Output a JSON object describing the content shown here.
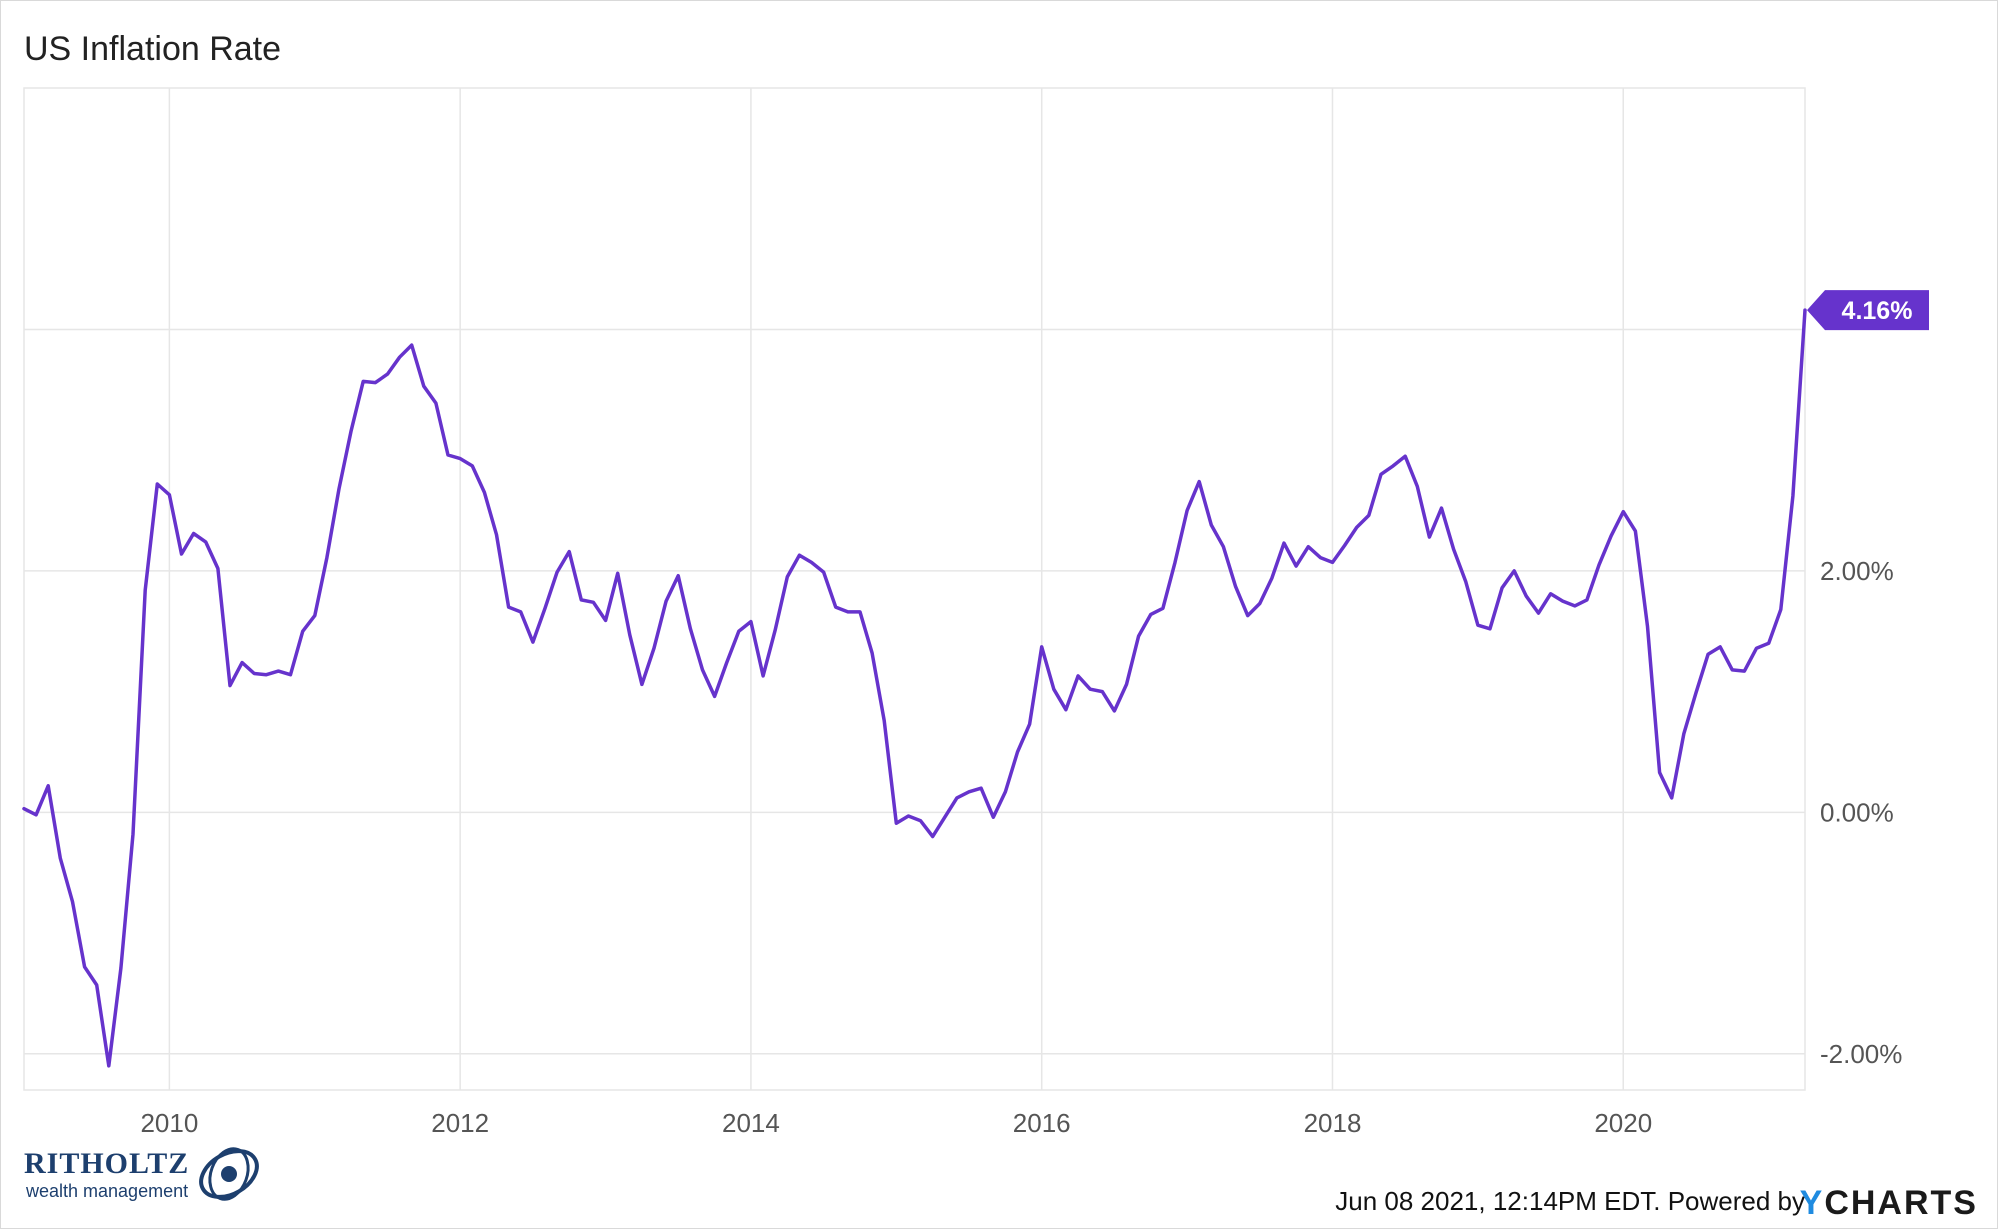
{
  "title": "US Inflation Rate",
  "footer": {
    "timestamp": "Jun 08 2021, 12:14PM EDT. Powered by",
    "brand_y": "Y",
    "brand_rest": "CHARTS"
  },
  "logo": {
    "name": "RITHOLTZ",
    "tagline": "wealth management"
  },
  "colors": {
    "series": "#6633cc",
    "grid": "#e6e6e6",
    "axis_text": "#555555"
  },
  "chart_data": {
    "type": "line",
    "title": "US Inflation Rate",
    "x_tick_labels": [
      "2010",
      "2012",
      "2014",
      "2016",
      "2018",
      "2020"
    ],
    "x_ticks": [
      2010,
      2012,
      2014,
      2016,
      2018,
      2020
    ],
    "y_tick_labels": [
      "-2.00%",
      "0.00%",
      "2.00%"
    ],
    "y_ticks": [
      -2,
      0,
      2
    ],
    "xlim": [
      "2009-01",
      "2021-04"
    ],
    "ylim": [
      -2.3,
      6.0
    ],
    "grid": true,
    "last_value_label": "4.16%",
    "series": [
      {
        "x": [
          "2009-01",
          "2009-02",
          "2009-03",
          "2009-04",
          "2009-05",
          "2009-06",
          "2009-07",
          "2009-08",
          "2009-09",
          "2009-10",
          "2009-11",
          "2009-12",
          "2010-01",
          "2010-02",
          "2010-03",
          "2010-04",
          "2010-05",
          "2010-06",
          "2010-07",
          "2010-08",
          "2010-09",
          "2010-10",
          "2010-11",
          "2010-12",
          "2011-01",
          "2011-02",
          "2011-03",
          "2011-04",
          "2011-05",
          "2011-06",
          "2011-07",
          "2011-08",
          "2011-09",
          "2011-10",
          "2011-11",
          "2011-12",
          "2012-01",
          "2012-02",
          "2012-03",
          "2012-04",
          "2012-05",
          "2012-06",
          "2012-07",
          "2012-08",
          "2012-09",
          "2012-10",
          "2012-11",
          "2012-12",
          "2013-01",
          "2013-02",
          "2013-03",
          "2013-04",
          "2013-05",
          "2013-06",
          "2013-07",
          "2013-08",
          "2013-09",
          "2013-10",
          "2013-11",
          "2013-12",
          "2014-01",
          "2014-02",
          "2014-03",
          "2014-04",
          "2014-05",
          "2014-06",
          "2014-07",
          "2014-08",
          "2014-09",
          "2014-10",
          "2014-11",
          "2014-12",
          "2015-01",
          "2015-02",
          "2015-03",
          "2015-04",
          "2015-05",
          "2015-06",
          "2015-07",
          "2015-08",
          "2015-09",
          "2015-10",
          "2015-11",
          "2015-12",
          "2016-01",
          "2016-02",
          "2016-03",
          "2016-04",
          "2016-05",
          "2016-06",
          "2016-07",
          "2016-08",
          "2016-09",
          "2016-10",
          "2016-11",
          "2016-12",
          "2017-01",
          "2017-02",
          "2017-03",
          "2017-04",
          "2017-05",
          "2017-06",
          "2017-07",
          "2017-08",
          "2017-09",
          "2017-10",
          "2017-11",
          "2017-12",
          "2018-01",
          "2018-02",
          "2018-03",
          "2018-04",
          "2018-05",
          "2018-06",
          "2018-07",
          "2018-08",
          "2018-09",
          "2018-10",
          "2018-11",
          "2018-12",
          "2019-01",
          "2019-02",
          "2019-03",
          "2019-04",
          "2019-05",
          "2019-06",
          "2019-07",
          "2019-08",
          "2019-09",
          "2019-10",
          "2019-11",
          "2019-12",
          "2020-01",
          "2020-02",
          "2020-03",
          "2020-04",
          "2020-05",
          "2020-06",
          "2020-07",
          "2020-08",
          "2020-09",
          "2020-10",
          "2020-11",
          "2020-12",
          "2021-01",
          "2021-02",
          "2021-03",
          "2021-04"
        ],
        "values": [
          0.03,
          -0.02,
          0.22,
          -0.38,
          -0.74,
          -1.28,
          -1.43,
          -2.1,
          -1.29,
          -0.18,
          1.84,
          2.72,
          2.63,
          2.14,
          2.31,
          2.24,
          2.02,
          1.05,
          1.24,
          1.15,
          1.14,
          1.17,
          1.14,
          1.5,
          1.63,
          2.11,
          2.68,
          3.16,
          3.57,
          3.56,
          3.63,
          3.77,
          3.87,
          3.53,
          3.39,
          2.96,
          2.93,
          2.87,
          2.65,
          2.3,
          1.7,
          1.66,
          1.41,
          1.69,
          1.99,
          2.16,
          1.76,
          1.74,
          1.59,
          1.98,
          1.47,
          1.06,
          1.36,
          1.75,
          1.96,
          1.52,
          1.18,
          0.96,
          1.24,
          1.5,
          1.58,
          1.13,
          1.51,
          1.95,
          2.13,
          2.07,
          1.99,
          1.7,
          1.66,
          1.66,
          1.32,
          0.76,
          -0.09,
          -0.03,
          -0.07,
          -0.2,
          -0.04,
          0.12,
          0.17,
          0.2,
          -0.04,
          0.17,
          0.5,
          0.73,
          1.37,
          1.02,
          0.85,
          1.13,
          1.02,
          1.0,
          0.84,
          1.06,
          1.46,
          1.64,
          1.69,
          2.07,
          2.5,
          2.74,
          2.38,
          2.2,
          1.87,
          1.63,
          1.73,
          1.94,
          2.23,
          2.04,
          2.2,
          2.11,
          2.07,
          2.21,
          2.36,
          2.46,
          2.8,
          2.87,
          2.95,
          2.7,
          2.28,
          2.52,
          2.18,
          1.91,
          1.55,
          1.52,
          1.86,
          2.0,
          1.79,
          1.65,
          1.81,
          1.75,
          1.71,
          1.76,
          2.05,
          2.29,
          2.49,
          2.33,
          1.54,
          0.33,
          0.12,
          0.65,
          0.99,
          1.31,
          1.37,
          1.18,
          1.17,
          1.36,
          1.4,
          1.68,
          2.62,
          4.16
        ]
      }
    ]
  }
}
